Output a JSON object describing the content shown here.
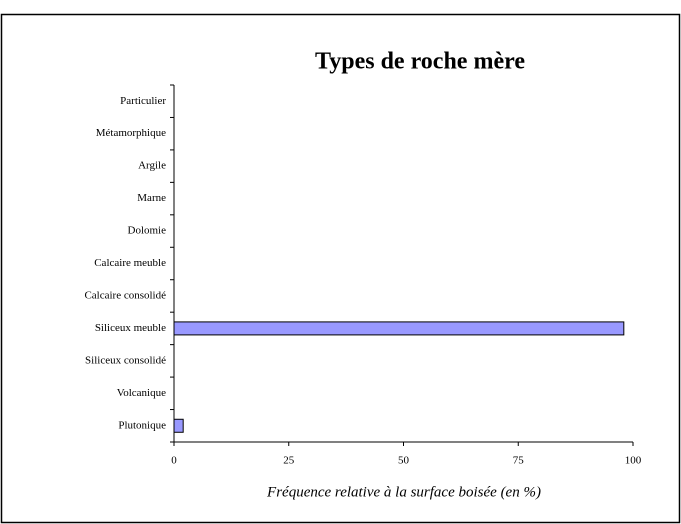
{
  "chart_data": {
    "type": "hbar",
    "title": "Types de roche mère",
    "x_label": "Fréquence relative à la surface boisée (en %)",
    "categories": [
      "Particulier",
      "Métamorphique",
      "Argile",
      "Marne",
      "Dolomie",
      "Calcaire meuble",
      "Calcaire consolidé",
      "Siliceux meuble",
      "Siliceux consolidé",
      "Volcanique",
      "Plutonique"
    ],
    "values": [
      0,
      0,
      0,
      0,
      0,
      0,
      0,
      98,
      0,
      0,
      2
    ],
    "color": "#9999ff",
    "xlim": [
      0,
      100
    ],
    "xticks": [
      0,
      25,
      50,
      75,
      100
    ],
    "grid": false
  }
}
